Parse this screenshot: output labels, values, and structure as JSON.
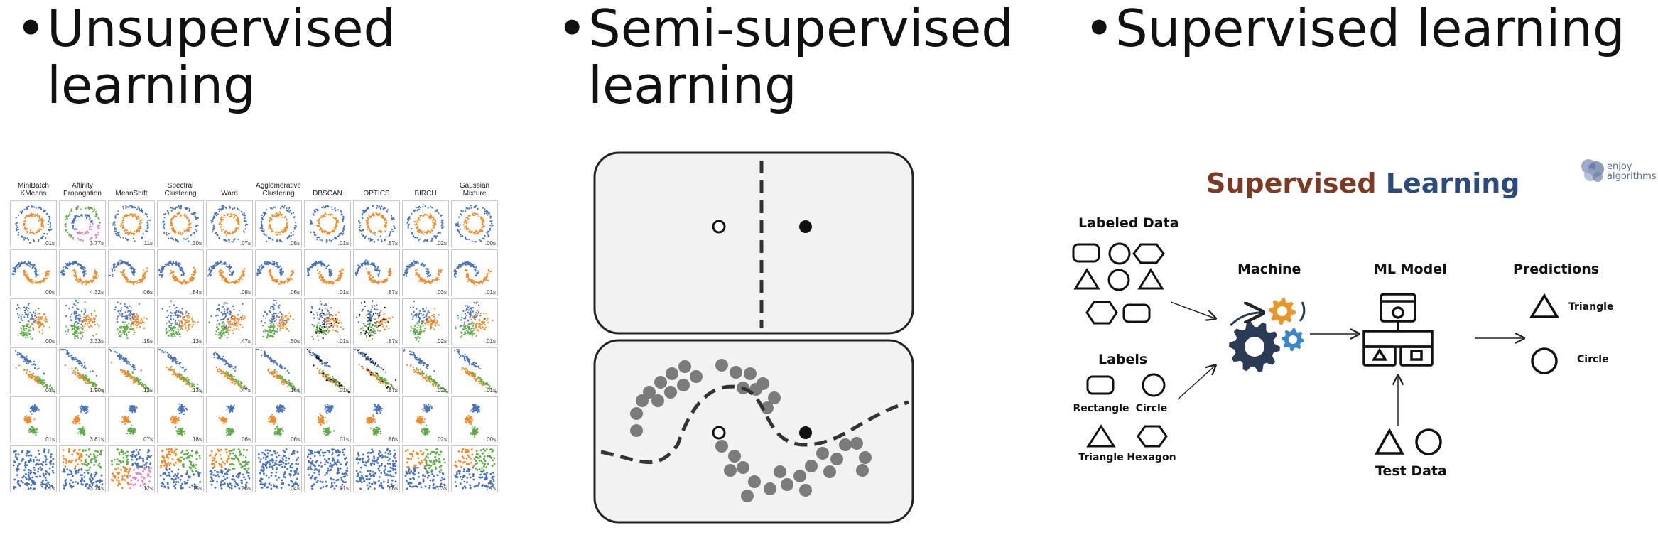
{
  "titles": {
    "unsupervised_line1": "Unsupervised",
    "unsupervised_line2": "learning",
    "semi_line1": "Semi-supervised",
    "semi_line2": "learning",
    "supervised_line1": "Supervised learning",
    "bullet": "•"
  },
  "clustering": {
    "algorithms": [
      {
        "line1": "MiniBatch",
        "line2": "KMeans"
      },
      {
        "line1": "Affinity",
        "line2": "Propagation"
      },
      {
        "line1": "MeanShift",
        "line2": ""
      },
      {
        "line1": "Spectral",
        "line2": "Clustering"
      },
      {
        "line1": "Ward",
        "line2": ""
      },
      {
        "line1": "Agglomerative",
        "line2": "Clustering"
      },
      {
        "line1": "DBSCAN",
        "line2": ""
      },
      {
        "line1": "OPTICS",
        "line2": ""
      },
      {
        "line1": "BIRCH",
        "line2": ""
      },
      {
        "line1": "Gaussian",
        "line2": "Mixture"
      }
    ],
    "times": [
      [
        ".01s",
        "3.77s",
        ".11s",
        ".30s",
        ".07s",
        ".08s",
        ".01s",
        ".87s",
        ".02s",
        ".00s"
      ],
      [
        ".00s",
        "4.32s",
        ".06s",
        ".84s",
        ".08s",
        ".06s",
        ".01s",
        ".87s",
        ".03s",
        ".01s"
      ],
      [
        ".00s",
        "3.33s",
        ".15s",
        ".13s",
        ".47s",
        ".50s",
        ".01s",
        ".87s",
        ".02s",
        ".01s"
      ],
      [
        ".01s",
        "1.90s",
        ".13s",
        ".13s",
        ".47s",
        ".16s",
        ".01s",
        ".87s",
        ".02s",
        ".01s"
      ],
      [
        ".01s",
        "3.61s",
        ".07s",
        ".18s",
        ".06s",
        ".06s",
        ".01s",
        ".86s",
        ".02s",
        ".00s"
      ],
      [
        ".01s",
        "3.74s",
        ".12s",
        ".15s",
        ".06s",
        ".04s",
        ".01s",
        ".86s",
        ".03s",
        ".01s"
      ]
    ]
  },
  "supervised": {
    "title_part1": "Supervised",
    "title_part2": "Learning",
    "title_color1": "#7a3a24",
    "title_color2": "#2c4a7a",
    "logo_line1": "enjoy",
    "logo_line2": "algorithms",
    "labeled_data": "Labeled Data",
    "labels": "Labels",
    "machine": "Machine",
    "ml_model": "ML Model",
    "predictions": "Predictions",
    "test_data": "Test Data",
    "rectangle": "Rectangle",
    "circle": "Circle",
    "triangle": "Triangle",
    "hexagon": "Hexagon",
    "pred_triangle": "Triangle",
    "pred_circle": "Circle"
  },
  "colors": {
    "blue": "#4a72b8",
    "orange": "#f28a2c",
    "green": "#5fab4a",
    "pink": "#e97fc3",
    "black": "#111111",
    "gear_orange": "#e8962e",
    "gear_blue": "#3a86c8",
    "gear_dark": "#2b3a55"
  }
}
